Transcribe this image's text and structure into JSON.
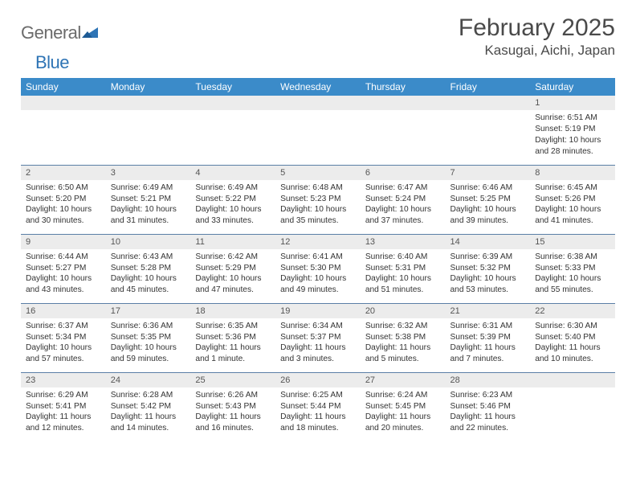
{
  "logo": {
    "text_gray": "General",
    "text_blue": "Blue"
  },
  "title": "February 2025",
  "location": "Kasugai, Aichi, Japan",
  "colors": {
    "header_bg": "#3b8bc9",
    "header_text": "#ffffff",
    "daynum_bg": "#ececec",
    "rule": "#5b7fa6",
    "logo_gray": "#6b6b6b",
    "logo_blue": "#2e74b5"
  },
  "weekdays": [
    "Sunday",
    "Monday",
    "Tuesday",
    "Wednesday",
    "Thursday",
    "Friday",
    "Saturday"
  ],
  "weeks": [
    [
      {
        "day": ""
      },
      {
        "day": ""
      },
      {
        "day": ""
      },
      {
        "day": ""
      },
      {
        "day": ""
      },
      {
        "day": ""
      },
      {
        "day": "1",
        "sunrise": "Sunrise: 6:51 AM",
        "sunset": "Sunset: 5:19 PM",
        "daylight": "Daylight: 10 hours and 28 minutes."
      }
    ],
    [
      {
        "day": "2",
        "sunrise": "Sunrise: 6:50 AM",
        "sunset": "Sunset: 5:20 PM",
        "daylight": "Daylight: 10 hours and 30 minutes."
      },
      {
        "day": "3",
        "sunrise": "Sunrise: 6:49 AM",
        "sunset": "Sunset: 5:21 PM",
        "daylight": "Daylight: 10 hours and 31 minutes."
      },
      {
        "day": "4",
        "sunrise": "Sunrise: 6:49 AM",
        "sunset": "Sunset: 5:22 PM",
        "daylight": "Daylight: 10 hours and 33 minutes."
      },
      {
        "day": "5",
        "sunrise": "Sunrise: 6:48 AM",
        "sunset": "Sunset: 5:23 PM",
        "daylight": "Daylight: 10 hours and 35 minutes."
      },
      {
        "day": "6",
        "sunrise": "Sunrise: 6:47 AM",
        "sunset": "Sunset: 5:24 PM",
        "daylight": "Daylight: 10 hours and 37 minutes."
      },
      {
        "day": "7",
        "sunrise": "Sunrise: 6:46 AM",
        "sunset": "Sunset: 5:25 PM",
        "daylight": "Daylight: 10 hours and 39 minutes."
      },
      {
        "day": "8",
        "sunrise": "Sunrise: 6:45 AM",
        "sunset": "Sunset: 5:26 PM",
        "daylight": "Daylight: 10 hours and 41 minutes."
      }
    ],
    [
      {
        "day": "9",
        "sunrise": "Sunrise: 6:44 AM",
        "sunset": "Sunset: 5:27 PM",
        "daylight": "Daylight: 10 hours and 43 minutes."
      },
      {
        "day": "10",
        "sunrise": "Sunrise: 6:43 AM",
        "sunset": "Sunset: 5:28 PM",
        "daylight": "Daylight: 10 hours and 45 minutes."
      },
      {
        "day": "11",
        "sunrise": "Sunrise: 6:42 AM",
        "sunset": "Sunset: 5:29 PM",
        "daylight": "Daylight: 10 hours and 47 minutes."
      },
      {
        "day": "12",
        "sunrise": "Sunrise: 6:41 AM",
        "sunset": "Sunset: 5:30 PM",
        "daylight": "Daylight: 10 hours and 49 minutes."
      },
      {
        "day": "13",
        "sunrise": "Sunrise: 6:40 AM",
        "sunset": "Sunset: 5:31 PM",
        "daylight": "Daylight: 10 hours and 51 minutes."
      },
      {
        "day": "14",
        "sunrise": "Sunrise: 6:39 AM",
        "sunset": "Sunset: 5:32 PM",
        "daylight": "Daylight: 10 hours and 53 minutes."
      },
      {
        "day": "15",
        "sunrise": "Sunrise: 6:38 AM",
        "sunset": "Sunset: 5:33 PM",
        "daylight": "Daylight: 10 hours and 55 minutes."
      }
    ],
    [
      {
        "day": "16",
        "sunrise": "Sunrise: 6:37 AM",
        "sunset": "Sunset: 5:34 PM",
        "daylight": "Daylight: 10 hours and 57 minutes."
      },
      {
        "day": "17",
        "sunrise": "Sunrise: 6:36 AM",
        "sunset": "Sunset: 5:35 PM",
        "daylight": "Daylight: 10 hours and 59 minutes."
      },
      {
        "day": "18",
        "sunrise": "Sunrise: 6:35 AM",
        "sunset": "Sunset: 5:36 PM",
        "daylight": "Daylight: 11 hours and 1 minute."
      },
      {
        "day": "19",
        "sunrise": "Sunrise: 6:34 AM",
        "sunset": "Sunset: 5:37 PM",
        "daylight": "Daylight: 11 hours and 3 minutes."
      },
      {
        "day": "20",
        "sunrise": "Sunrise: 6:32 AM",
        "sunset": "Sunset: 5:38 PM",
        "daylight": "Daylight: 11 hours and 5 minutes."
      },
      {
        "day": "21",
        "sunrise": "Sunrise: 6:31 AM",
        "sunset": "Sunset: 5:39 PM",
        "daylight": "Daylight: 11 hours and 7 minutes."
      },
      {
        "day": "22",
        "sunrise": "Sunrise: 6:30 AM",
        "sunset": "Sunset: 5:40 PM",
        "daylight": "Daylight: 11 hours and 10 minutes."
      }
    ],
    [
      {
        "day": "23",
        "sunrise": "Sunrise: 6:29 AM",
        "sunset": "Sunset: 5:41 PM",
        "daylight": "Daylight: 11 hours and 12 minutes."
      },
      {
        "day": "24",
        "sunrise": "Sunrise: 6:28 AM",
        "sunset": "Sunset: 5:42 PM",
        "daylight": "Daylight: 11 hours and 14 minutes."
      },
      {
        "day": "25",
        "sunrise": "Sunrise: 6:26 AM",
        "sunset": "Sunset: 5:43 PM",
        "daylight": "Daylight: 11 hours and 16 minutes."
      },
      {
        "day": "26",
        "sunrise": "Sunrise: 6:25 AM",
        "sunset": "Sunset: 5:44 PM",
        "daylight": "Daylight: 11 hours and 18 minutes."
      },
      {
        "day": "27",
        "sunrise": "Sunrise: 6:24 AM",
        "sunset": "Sunset: 5:45 PM",
        "daylight": "Daylight: 11 hours and 20 minutes."
      },
      {
        "day": "28",
        "sunrise": "Sunrise: 6:23 AM",
        "sunset": "Sunset: 5:46 PM",
        "daylight": "Daylight: 11 hours and 22 minutes."
      },
      {
        "day": ""
      }
    ]
  ]
}
